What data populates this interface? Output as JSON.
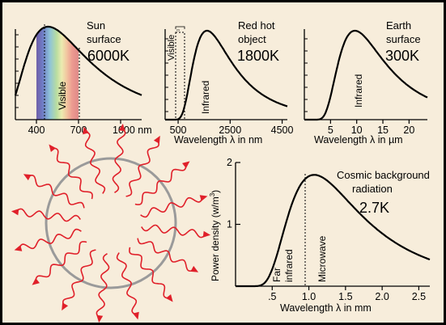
{
  "chart_data": [
    {
      "type": "line",
      "id": "sun",
      "title_lines": [
        "Sun",
        "surface"
      ],
      "temperature": "6000K",
      "band_label": "Visible",
      "x_tick_labels": [
        "400",
        "700",
        "1000 nm"
      ],
      "x_ticks": [
        400,
        700,
        1000
      ],
      "xlim": [
        250,
        1150
      ],
      "ylim": [
        0,
        1
      ],
      "curve": {
        "T": 6000,
        "unit": "nm"
      }
    },
    {
      "type": "line",
      "id": "redhot",
      "title_lines": [
        "Red hot",
        "object"
      ],
      "temperature": "1800K",
      "band_label": "Visible",
      "region_label": "Infrared",
      "xlabel": "Wavelength λ in nm",
      "x_tick_labels": [
        "500",
        "2500",
        "4500"
      ],
      "x_ticks": [
        500,
        2500,
        4500
      ],
      "xlim": [
        0,
        4700
      ],
      "ylim": [
        0,
        1
      ],
      "curve": {
        "T": 1800,
        "unit": "nm"
      }
    },
    {
      "type": "line",
      "id": "earth",
      "title_lines": [
        "Earth",
        "surface"
      ],
      "temperature": "300K",
      "region_label": "Infrared",
      "xlabel": "Wavelength λ in µm",
      "x_tick_labels": [
        "5",
        "10",
        "15",
        "20"
      ],
      "x_ticks": [
        5,
        10,
        15,
        20
      ],
      "xlim": [
        0,
        23.5
      ],
      "ylim": [
        0,
        1
      ],
      "curve": {
        "T": 300,
        "unit": "um"
      }
    },
    {
      "type": "line",
      "id": "cmb",
      "title_lines": [
        "Cosmic background",
        "radiation"
      ],
      "temperature": "2.7K",
      "region_labels": {
        "far": [
          "Far",
          "infrared"
        ],
        "micro": "Microwave"
      },
      "xlabel": "Wavelength λ in mm",
      "ylabel": "Power density (w/m",
      "ylabel_sup": "3",
      "ylabel_close": ")",
      "x_tick_labels": [
        ".5",
        "1.0",
        "1.5",
        "2.0",
        "2.5"
      ],
      "x_ticks": [
        0.5,
        1.0,
        1.5,
        2.0,
        2.5
      ],
      "y_tick_labels": [
        "1",
        "2"
      ],
      "y_ticks": [
        1,
        2
      ],
      "xlim": [
        0,
        2.65
      ],
      "ylim": [
        0,
        2
      ],
      "peak_value": 1.8,
      "curve": {
        "T": 2.7,
        "unit": "mm"
      }
    }
  ],
  "colors": {
    "background": "#f7eddb",
    "frame": "#000000",
    "curve": "#000000",
    "wave": "#e0202a",
    "circle": "#9a9a9a"
  }
}
